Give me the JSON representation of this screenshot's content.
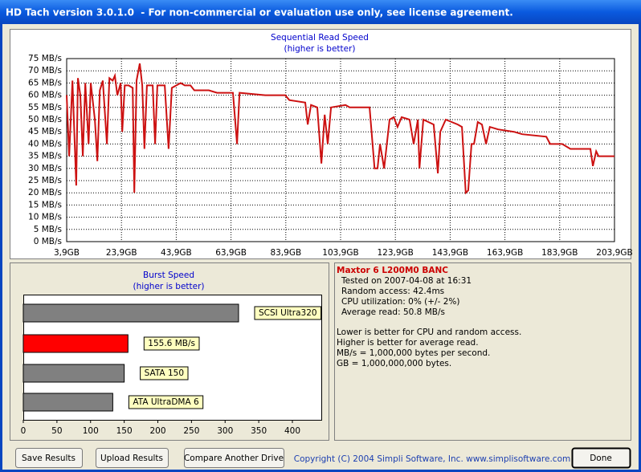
{
  "window_title": "HD Tach version 3.0.1.0  - For non-commercial or evaluation use only, see license agreement.",
  "chart_data": [
    {
      "type": "line",
      "title": "Sequential Read Speed",
      "subtitle": "(higher is better)",
      "color": "#cc1111",
      "grid": true,
      "x": [
        3.9,
        4.8,
        6.0,
        7.4,
        8.0,
        8.9,
        9.8,
        10.7,
        11.9,
        12.7,
        14.2,
        15.1,
        16.0,
        17.1,
        18.6,
        19.5,
        20.7,
        21.5,
        22.4,
        23.6,
        24.2,
        25.1,
        26.5,
        28.0,
        28.6,
        29.4,
        30.6,
        31.5,
        32.3,
        33.2,
        35.3,
        36.2,
        37.0,
        39.7,
        41.1,
        42.3,
        45.5,
        47.0,
        49.1,
        50.5,
        55.8,
        58.8,
        64.6,
        66.1,
        67.0,
        76.4,
        83.7,
        85.2,
        91.0,
        91.9,
        93.1,
        95.4,
        96.9,
        98.1,
        99.2,
        100.4,
        105.7,
        107.2,
        114.5,
        116.3,
        117.4,
        118.3,
        119.8,
        121.8,
        123.3,
        124.7,
        126.2,
        129.1,
        130.6,
        132.1,
        132.7,
        134.1,
        137.9,
        139.4,
        140.3,
        142.3,
        146.7,
        148.2,
        149.6,
        150.5,
        151.7,
        152.6,
        154.0,
        155.5,
        157.0,
        158.4,
        161.4,
        167.2,
        170.2,
        179.0,
        180.4,
        184.8,
        187.8,
        195.1,
        196.0,
        197.2,
        198.1,
        203.9
      ],
      "values": [
        60,
        35,
        66,
        23,
        67,
        60,
        35,
        65,
        40,
        65,
        50,
        33,
        62,
        66,
        40,
        67,
        66,
        68,
        60,
        65,
        45,
        64,
        64,
        63,
        20,
        66,
        73,
        64,
        38,
        64,
        64,
        40,
        64,
        64,
        38,
        63,
        65,
        64,
        64,
        62,
        62,
        61,
        61,
        40,
        61,
        60,
        60,
        58,
        57,
        48,
        56,
        55,
        32,
        52,
        40,
        55,
        56,
        55,
        55,
        30,
        30,
        40,
        30,
        50,
        51,
        47,
        51,
        50,
        40,
        50,
        30,
        50,
        48,
        28,
        45,
        50,
        48,
        47,
        20,
        21,
        40,
        40,
        49,
        48,
        40,
        47,
        46,
        45,
        44,
        43,
        40,
        40,
        38,
        38,
        31,
        37,
        35,
        35
      ],
      "xlim": [
        3.9,
        203.9
      ],
      "ylim": [
        0,
        75
      ],
      "xticks": [
        {
          "value": 3.9,
          "label": "3,9GB"
        },
        {
          "value": 23.9,
          "label": "23,9GB"
        },
        {
          "value": 43.9,
          "label": "43,9GB"
        },
        {
          "value": 63.9,
          "label": "63,9GB"
        },
        {
          "value": 83.9,
          "label": "83,9GB"
        },
        {
          "value": 103.9,
          "label": "103,9GB"
        },
        {
          "value": 123.9,
          "label": "123,9GB"
        },
        {
          "value": 143.9,
          "label": "143,9GB"
        },
        {
          "value": 163.9,
          "label": "163,9GB"
        },
        {
          "value": 183.9,
          "label": "183,9GB"
        },
        {
          "value": 203.9,
          "label": "203,9GB"
        }
      ],
      "yticks": [
        {
          "value": 0,
          "label": "0 MB/s"
        },
        {
          "value": 5,
          "label": "5 MB/s"
        },
        {
          "value": 10,
          "label": "10 MB/s"
        },
        {
          "value": 15,
          "label": "15 MB/s"
        },
        {
          "value": 20,
          "label": "20 MB/s"
        },
        {
          "value": 25,
          "label": "25 MB/s"
        },
        {
          "value": 30,
          "label": "30 MB/s"
        },
        {
          "value": 35,
          "label": "35 MB/s"
        },
        {
          "value": 40,
          "label": "40 MB/s"
        },
        {
          "value": 45,
          "label": "45 MB/s"
        },
        {
          "value": 50,
          "label": "50 MB/s"
        },
        {
          "value": 55,
          "label": "55 MB/s"
        },
        {
          "value": 60,
          "label": "60 MB/s"
        },
        {
          "value": 65,
          "label": "65 MB/s"
        },
        {
          "value": 70,
          "label": "70 MB/s"
        },
        {
          "value": 75,
          "label": "75 MB/s"
        }
      ]
    },
    {
      "type": "hbar",
      "title": "Burst Speed",
      "subtitle": "(higher is better)",
      "categories": [
        "SCSI Ultra320",
        null,
        "SATA 150",
        "ATA UltraDMA 6"
      ],
      "values": [
        320,
        155.6,
        150,
        133
      ],
      "value_labels": [
        null,
        "155.6 MB/s",
        null,
        null
      ],
      "colors": [
        "#808080",
        "#ff0000",
        "#808080",
        "#808080"
      ],
      "xlim": [
        0,
        443
      ],
      "xticks": [
        0,
        50,
        100,
        150,
        200,
        250,
        300,
        350,
        400
      ]
    }
  ],
  "info": {
    "title": "Maxtor 6 L200M0 BANC",
    "lines": [
      "Tested on 2007-04-08 at 16:31",
      "Random access: 42.4ms",
      "CPU utilization: 0% (+/- 2%)",
      "Average read: 50.8 MB/s"
    ],
    "notes": [
      "Lower is better for CPU and random access.",
      "Higher is better for average read.",
      "MB/s = 1,000,000 bytes per second.",
      "GB = 1,000,000,000 bytes."
    ]
  },
  "buttons": [
    "Save Results",
    "Upload Results",
    "Compare Another Drive",
    "Done"
  ],
  "copyright": "Copyright (C) 2004 Simpli Software, Inc. www.simplisoftware.com"
}
